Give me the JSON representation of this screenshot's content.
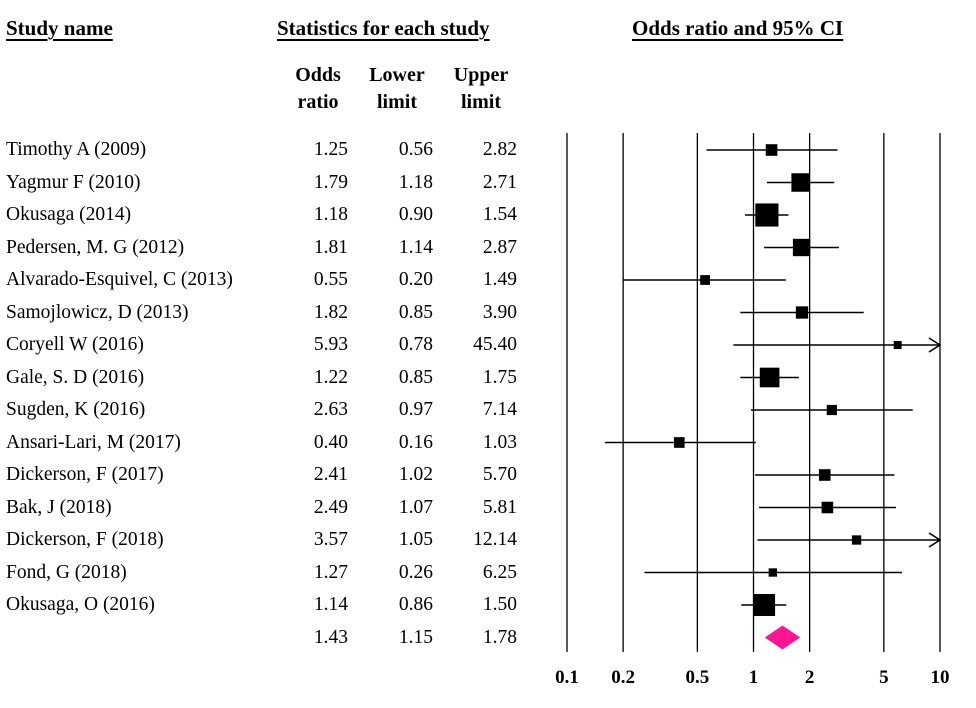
{
  "headers": {
    "study_name": "Study name",
    "statistics": "Statistics for each study",
    "plot_title": "Odds ratio and 95% CI",
    "odds_ratio": [
      "Odds",
      "ratio"
    ],
    "lower_limit": [
      "Lower",
      "limit"
    ],
    "upper_limit": [
      "Upper",
      "limit"
    ]
  },
  "studies": [
    {
      "name": "Timothy A (2009)",
      "or": "1.25",
      "lower": "0.56",
      "upper": "2.82",
      "weight": 2
    },
    {
      "name": "Yagmur F (2010)",
      "or": "1.79",
      "lower": "1.18",
      "upper": "2.71",
      "weight": 5
    },
    {
      "name": "Okusaga (2014)",
      "or": "1.18",
      "lower": "0.90",
      "upper": "1.54",
      "weight": 7
    },
    {
      "name": "Pedersen, M. G (2012)",
      "or": "1.81",
      "lower": "1.14",
      "upper": "2.87",
      "weight": 4.5
    },
    {
      "name": "Alvarado-Esquivel, C (2013)",
      "or": "0.55",
      "lower": "0.20",
      "upper": "1.49",
      "weight": 1.2
    },
    {
      "name": "Samojlowicz, D (2013)",
      "or": "1.82",
      "lower": "0.85",
      "upper": "3.90",
      "weight": 2.3
    },
    {
      "name": "Coryell W (2016)",
      "or": "5.93",
      "lower": "0.78",
      "upper": "45.40",
      "weight": 0.4
    },
    {
      "name": "Gale, S. D (2016)",
      "or": "1.22",
      "lower": "0.85",
      "upper": "1.75",
      "weight": 5.5
    },
    {
      "name": "Sugden, K (2016)",
      "or": "2.63",
      "lower": "0.97",
      "upper": "7.14",
      "weight": 1.4
    },
    {
      "name": "Ansari-Lari, M (2017)",
      "or": "0.40",
      "lower": "0.16",
      "upper": "1.03",
      "weight": 1.6
    },
    {
      "name": "Dickerson, F (2017)",
      "or": "2.41",
      "lower": "1.02",
      "upper": "5.70",
      "weight": 2
    },
    {
      "name": "Bak, J (2018)",
      "or": "2.49",
      "lower": "1.07",
      "upper": "5.81",
      "weight": 2
    },
    {
      "name": "Dickerson, F (2018)",
      "or": "3.57",
      "lower": "1.05",
      "upper": "12.14",
      "weight": 1
    },
    {
      "name": "Fond, G (2018)",
      "or": "1.27",
      "lower": "0.26",
      "upper": "6.25",
      "weight": 0.6
    },
    {
      "name": "Okusaga, O (2016)",
      "or": "1.14",
      "lower": "0.86",
      "upper": "1.50",
      "weight": 6.5
    }
  ],
  "summary": {
    "or": "1.43",
    "lower": "1.15",
    "upper": "1.78",
    "color": "#ff1493"
  },
  "chart_data": {
    "type": "forest",
    "title": "Odds ratio and 95% CI",
    "scale": "log",
    "xlim": [
      0.1,
      10
    ],
    "ticks": [
      0.1,
      0.2,
      0.5,
      1,
      2,
      5,
      10
    ],
    "tick_labels": [
      "0.1",
      "0.2",
      "0.5",
      "1",
      "2",
      "5",
      "10"
    ],
    "grid": true
  }
}
